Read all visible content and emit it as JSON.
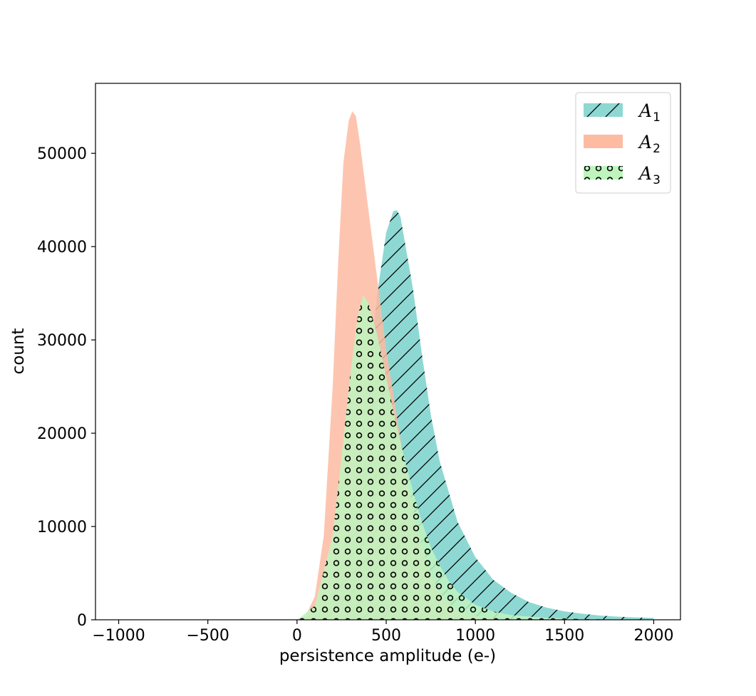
{
  "chart_data": {
    "type": "area",
    "xlabel": "persistence amplitude (e-)",
    "ylabel": "count",
    "xlim": [
      -1130,
      2150
    ],
    "ylim": [
      0,
      57500
    ],
    "xticks": [
      -1000,
      -500,
      0,
      500,
      1000,
      1500,
      2000
    ],
    "yticks": [
      0,
      10000,
      20000,
      30000,
      40000,
      50000
    ],
    "grid": false,
    "legend_position": "top-right",
    "series": [
      {
        "name": "A",
        "subscript": "1",
        "color": "#8ed8d3",
        "hatch": "diagonal",
        "x": [
          -1000,
          0,
          100,
          200,
          300,
          400,
          450,
          500,
          540,
          560,
          580,
          600,
          650,
          700,
          750,
          800,
          900,
          1000,
          1100,
          1200,
          1300,
          1400,
          1500,
          1600,
          1700,
          1800,
          1900,
          2000
        ],
        "y": [
          0,
          0,
          500,
          3000,
          11000,
          26000,
          35000,
          41500,
          43800,
          43900,
          43200,
          41000,
          35500,
          28500,
          22000,
          17000,
          10500,
          6700,
          4300,
          2900,
          1900,
          1300,
          900,
          650,
          450,
          330,
          250,
          200
        ]
      },
      {
        "name": "A",
        "subscript": "2",
        "color": "#fdbba1",
        "hatch": "none",
        "x": [
          -1000,
          0,
          50,
          100,
          150,
          200,
          230,
          260,
          290,
          310,
          330,
          350,
          380,
          420,
          460,
          500,
          550,
          600,
          650,
          700,
          750,
          800,
          850,
          900,
          1000,
          1100,
          1200,
          1300
        ],
        "y": [
          0,
          0,
          500,
          2500,
          9000,
          25000,
          38000,
          49000,
          53500,
          54500,
          54000,
          51500,
          47000,
          41000,
          35000,
          29000,
          23000,
          17000,
          12000,
          8000,
          5000,
          3000,
          1800,
          1000,
          400,
          150,
          50,
          0
        ]
      },
      {
        "name": "A",
        "subscript": "3",
        "color": "#bff4bf",
        "hatch": "circles",
        "x": [
          -1000,
          0,
          100,
          200,
          250,
          300,
          340,
          370,
          400,
          450,
          500,
          550,
          600,
          650,
          700,
          750,
          800,
          850,
          900,
          1000,
          1100,
          1200,
          1400,
          1600,
          1800,
          2000
        ],
        "y": [
          0,
          0,
          1500,
          9000,
          17500,
          26500,
          32500,
          34800,
          34000,
          30500,
          26000,
          21500,
          17500,
          13800,
          10500,
          7800,
          5800,
          4200,
          3000,
          1600,
          900,
          500,
          200,
          80,
          30,
          0
        ]
      }
    ]
  }
}
